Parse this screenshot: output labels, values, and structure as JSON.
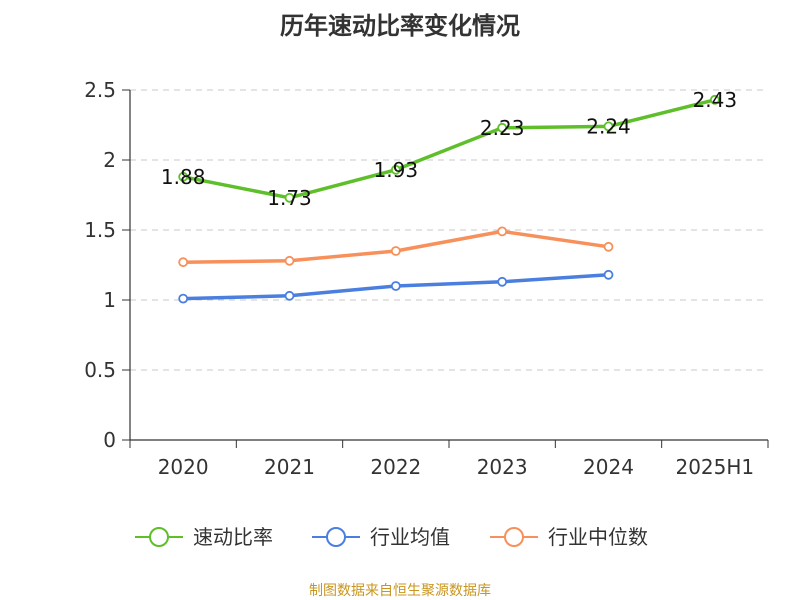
{
  "chart_data": {
    "type": "line",
    "title": "历年速动比率变化情况",
    "categories": [
      "2020",
      "2021",
      "2022",
      "2023",
      "2024",
      "2025H1"
    ],
    "ylim": [
      0,
      2.5
    ],
    "yticks": [
      "0",
      "0.5",
      "1",
      "1.5",
      "2",
      "2.5"
    ],
    "grid": true,
    "legend_position": "bottom",
    "series": [
      {
        "name": "速动比率",
        "color": "#5fbf2a",
        "values": [
          1.88,
          1.73,
          1.93,
          2.23,
          2.24,
          2.43
        ],
        "labels": [
          "1.88",
          "1.73",
          "1.93",
          "2.23",
          "2.24",
          "2.43"
        ]
      },
      {
        "name": "行业均值",
        "color": "#4a7fe0",
        "values": [
          1.01,
          1.03,
          1.1,
          1.13,
          1.18,
          null
        ]
      },
      {
        "name": "行业中位数",
        "color": "#f7905a",
        "values": [
          1.27,
          1.28,
          1.35,
          1.49,
          1.38,
          null
        ]
      }
    ]
  },
  "source_note": "制图数据来自恒生聚源数据库",
  "source_note_color": "#c8961e"
}
